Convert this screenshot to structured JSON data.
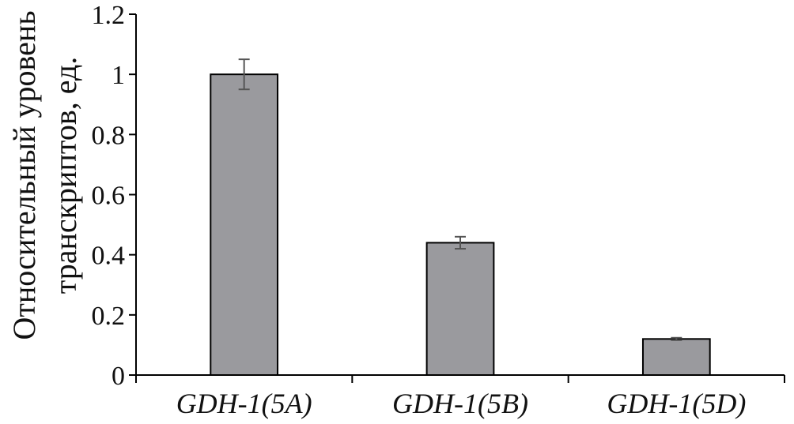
{
  "chart_data": {
    "type": "bar",
    "categories": [
      "GDH-1(5A)",
      "GDH-1(5B)",
      "GDH-1(5D)"
    ],
    "values": [
      1.0,
      0.44,
      0.12
    ],
    "errors": [
      0.05,
      0.02,
      0.004
    ],
    "title": "",
    "xlabel": "",
    "ylabel_lines": [
      "Относительный уровень",
      "транскриптов, ед."
    ],
    "ylim": [
      0,
      1.2
    ],
    "yticks": [
      0,
      0.2,
      0.4,
      0.6,
      0.8,
      1,
      1.2
    ],
    "ytick_labels": [
      "0",
      "0.2",
      "0.4",
      "0.6",
      "0.8",
      "1",
      "1.2"
    ],
    "grid": false,
    "legend": "none",
    "colors": {
      "bar_fill": "#9a9a9e",
      "bar_edge": "#000000",
      "error_bar": "#555555",
      "axis": "#000000"
    }
  }
}
